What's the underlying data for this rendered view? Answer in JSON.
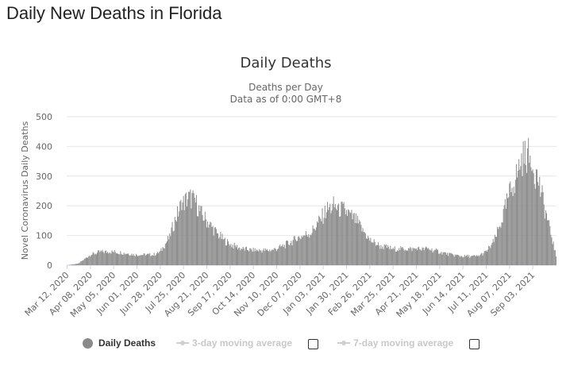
{
  "page": {
    "title": "Daily New Deaths in Florida"
  },
  "legend": {
    "items": [
      {
        "label": "Daily Deaths",
        "active": true
      },
      {
        "label": "3-day moving average",
        "active": false
      },
      {
        "label": "7-day moving average",
        "active": false
      }
    ]
  },
  "chart_data": {
    "type": "bar",
    "title": "Daily Deaths",
    "subtitle_lines": [
      "Deaths per Day",
      "Data as of 0:00 GMT+8"
    ],
    "ylabel": "Novel Coronavirus Daily Deaths",
    "xlabel": "",
    "ylim": [
      0,
      500
    ],
    "yticks": [
      0,
      100,
      200,
      300,
      400,
      500
    ],
    "grid": true,
    "x_start": "2020-03-12",
    "x_end": "2021-09-30",
    "xtick_labels": [
      "Mar 12, 2020",
      "Apr 08, 2020",
      "May 05, 2020",
      "Jun 01, 2020",
      "Jun 28, 2020",
      "Jul 25, 2020",
      "Aug 21, 2020",
      "Sep 17, 2020",
      "Oct 14, 2020",
      "Nov 10, 2020",
      "Dec 07, 2020",
      "Jan 03, 2021",
      "Jan 30, 2021",
      "Feb 26, 2021",
      "Mar 25, 2021",
      "Apr 21, 2021",
      "May 18, 2021",
      "Jun 14, 2021",
      "Jul 11, 2021",
      "Aug 07, 2021",
      "Sep 03, 2021"
    ],
    "bar_color": "#8a8a8a",
    "series": [
      {
        "name": "Daily Deaths",
        "points": [
          [
            "2020-03-12",
            0
          ],
          [
            "2020-03-25",
            5
          ],
          [
            "2020-04-01",
            20
          ],
          [
            "2020-04-08",
            35
          ],
          [
            "2020-04-20",
            45
          ],
          [
            "2020-05-05",
            45
          ],
          [
            "2020-05-20",
            40
          ],
          [
            "2020-06-01",
            35
          ],
          [
            "2020-06-20",
            35
          ],
          [
            "2020-06-28",
            45
          ],
          [
            "2020-07-08",
            90
          ],
          [
            "2020-07-15",
            150
          ],
          [
            "2020-07-22",
            200
          ],
          [
            "2020-07-30",
            225
          ],
          [
            "2020-08-06",
            225
          ],
          [
            "2020-08-14",
            175
          ],
          [
            "2020-08-21",
            150
          ],
          [
            "2020-09-01",
            110
          ],
          [
            "2020-09-10",
            85
          ],
          [
            "2020-09-17",
            70
          ],
          [
            "2020-10-01",
            55
          ],
          [
            "2020-10-14",
            50
          ],
          [
            "2020-11-01",
            50
          ],
          [
            "2020-11-10",
            55
          ],
          [
            "2020-11-25",
            75
          ],
          [
            "2020-12-07",
            95
          ],
          [
            "2020-12-20",
            110
          ],
          [
            "2020-12-30",
            150
          ],
          [
            "2021-01-07",
            185
          ],
          [
            "2021-01-15",
            200
          ],
          [
            "2021-01-30",
            180
          ],
          [
            "2021-02-10",
            150
          ],
          [
            "2021-02-20",
            110
          ],
          [
            "2021-02-26",
            85
          ],
          [
            "2021-03-10",
            65
          ],
          [
            "2021-03-25",
            55
          ],
          [
            "2021-04-21",
            55
          ],
          [
            "2021-05-05",
            55
          ],
          [
            "2021-05-18",
            45
          ],
          [
            "2021-06-01",
            35
          ],
          [
            "2021-06-14",
            30
          ],
          [
            "2021-07-01",
            30
          ],
          [
            "2021-07-11",
            45
          ],
          [
            "2021-07-20",
            80
          ],
          [
            "2021-07-28",
            140
          ],
          [
            "2021-08-07",
            240
          ],
          [
            "2021-08-15",
            300
          ],
          [
            "2021-08-22",
            360
          ],
          [
            "2021-08-28",
            370
          ],
          [
            "2021-09-03",
            340
          ],
          [
            "2021-09-10",
            280
          ],
          [
            "2021-09-17",
            190
          ],
          [
            "2021-09-24",
            110
          ],
          [
            "2021-09-30",
            30
          ]
        ]
      }
    ]
  }
}
